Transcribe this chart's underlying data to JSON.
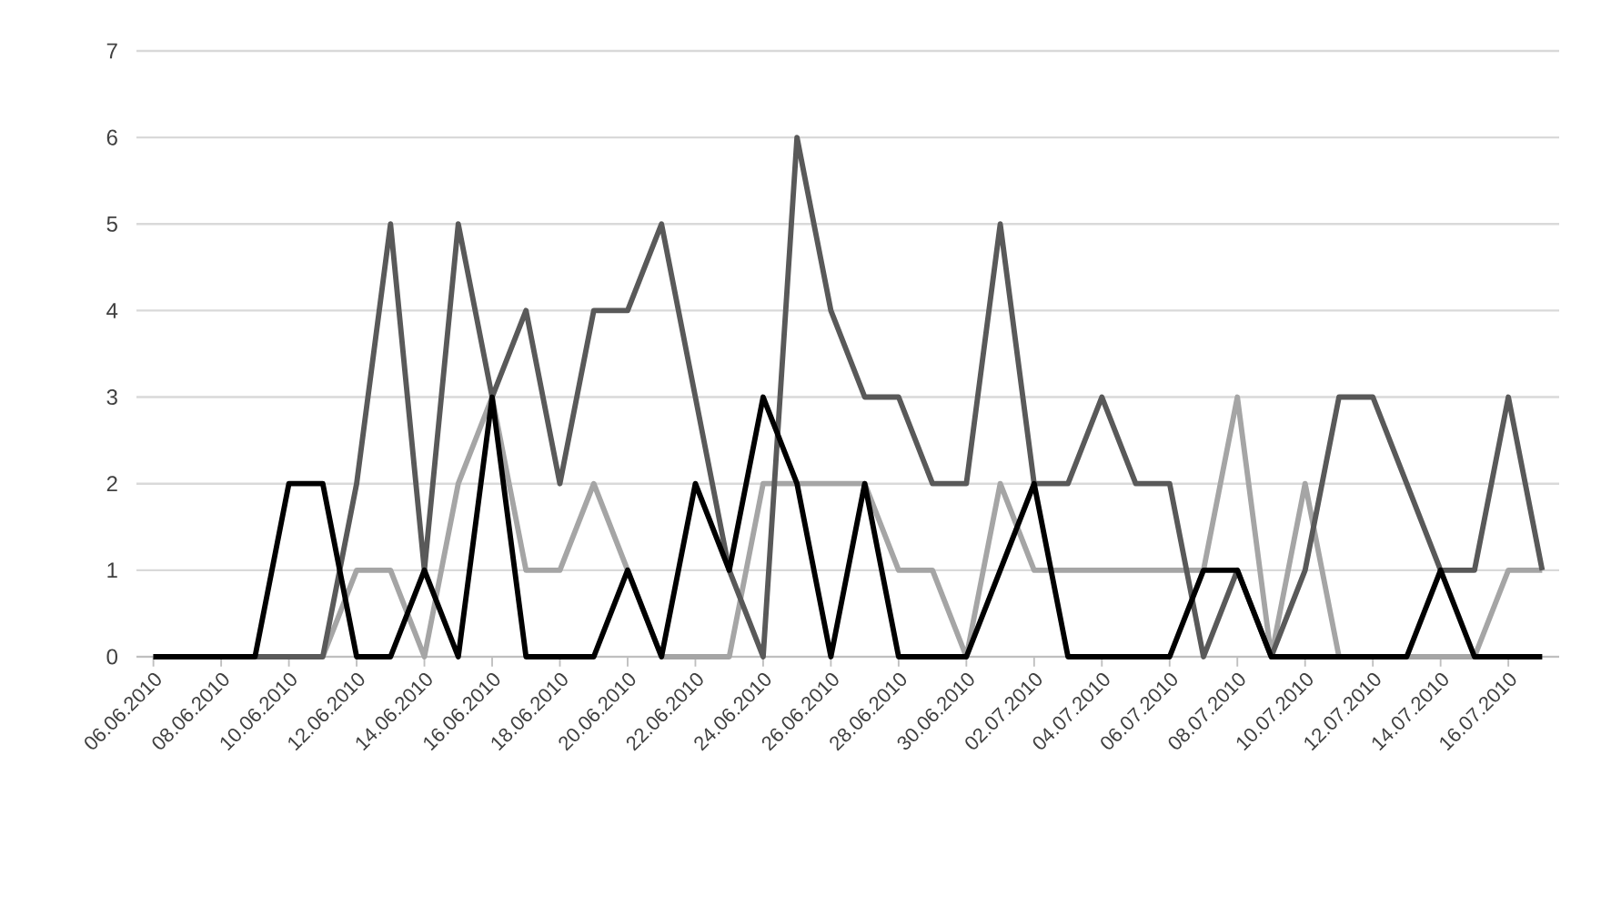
{
  "chart_data": {
    "type": "line",
    "categories": [
      "06.06.2010",
      null,
      "08.06.2010",
      null,
      "10.06.2010",
      null,
      "12.06.2010",
      null,
      "14.06.2010",
      null,
      "16.06.2010",
      null,
      "18.06.2010",
      null,
      "20.06.2010",
      null,
      "22.06.2010",
      null,
      "24.06.2010",
      null,
      "26.06.2010",
      null,
      "28.06.2010",
      null,
      "30.06.2010",
      null,
      "02.07.2010",
      null,
      "04.07.2010",
      null,
      "06.07.2010",
      null,
      "08.07.2010",
      null,
      "10.07.2010",
      null,
      "12.07.2010",
      null,
      "14.07.2010",
      null,
      "16.07.2010",
      null
    ],
    "series": [
      {
        "color": "#a5a5a5",
        "values": [
          0,
          0,
          0,
          0,
          0,
          0,
          1,
          1,
          0,
          2,
          3,
          1,
          1,
          2,
          1,
          0,
          0,
          0,
          2,
          2,
          2,
          2,
          1,
          1,
          0,
          2,
          1,
          1,
          1,
          1,
          1,
          1,
          3,
          0,
          2,
          0,
          0,
          0,
          0,
          0,
          1,
          1
        ]
      },
      {
        "color": "#595959",
        "values": [
          0,
          0,
          0,
          0,
          0,
          0,
          2,
          5,
          1,
          5,
          3,
          4,
          2,
          4,
          4,
          5,
          3,
          1,
          0,
          6,
          4,
          3,
          3,
          2,
          2,
          5,
          2,
          2,
          3,
          2,
          2,
          0,
          1,
          0,
          1,
          3,
          3,
          2,
          1,
          1,
          3,
          1
        ]
      },
      {
        "color": "#000000",
        "values": [
          0,
          0,
          0,
          0,
          2,
          2,
          0,
          0,
          1,
          0,
          3,
          0,
          0,
          0,
          1,
          0,
          2,
          1,
          3,
          2,
          0,
          2,
          0,
          0,
          0,
          1,
          2,
          0,
          0,
          0,
          0,
          1,
          1,
          0,
          0,
          0,
          0,
          0,
          1,
          0,
          0,
          0
        ]
      }
    ],
    "ylim": [
      0,
      7
    ],
    "yticks": [
      0,
      1,
      2,
      3,
      4,
      5,
      6,
      7
    ],
    "grid": "y"
  }
}
